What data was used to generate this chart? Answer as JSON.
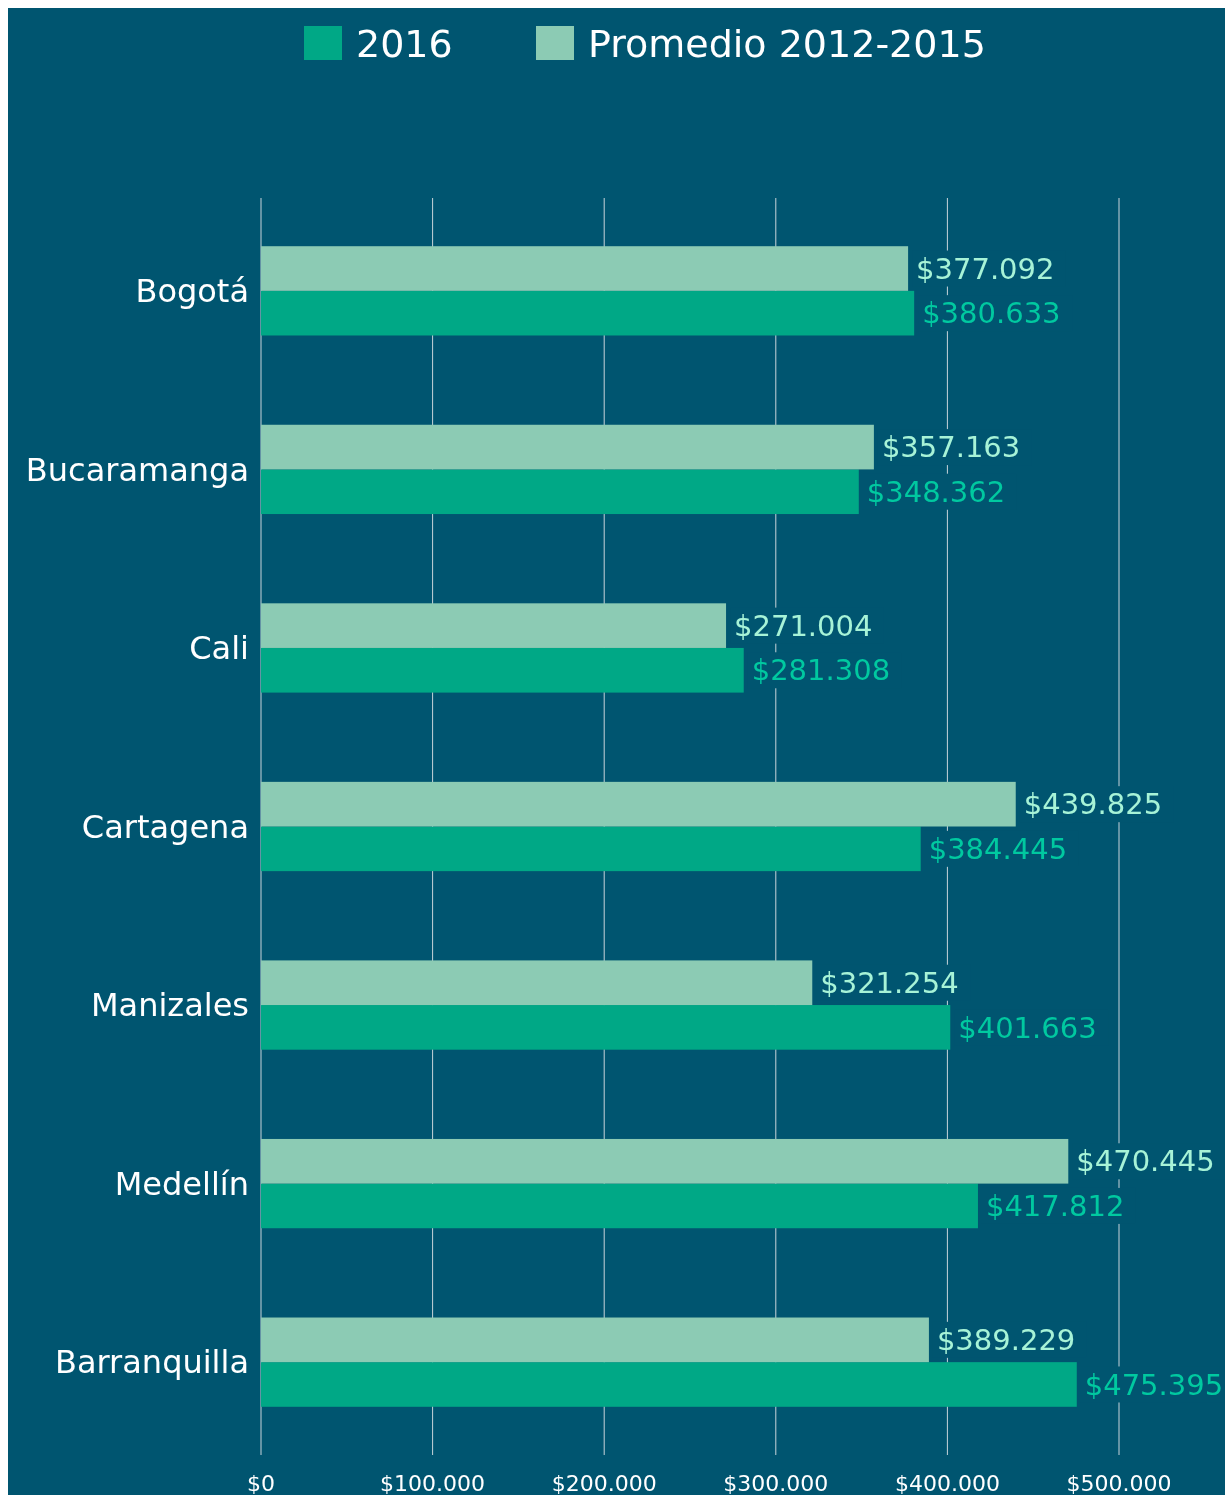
{
  "chart_data": {
    "type": "bar",
    "orientation": "horizontal",
    "categories": [
      "Bogotá",
      "Bucaramanga",
      "Cali",
      "Cartagena",
      "Manizales",
      "Medellín",
      "Barranquilla"
    ],
    "series": [
      {
        "name": "2016",
        "color": "#00a886",
        "values": [
          380633,
          348362,
          281308,
          384445,
          401663,
          417812,
          475395
        ],
        "value_labels": [
          "$380.633",
          "$348.362",
          "$281.308",
          "$384.445",
          "$401.663",
          "$417.812",
          "$475.395"
        ]
      },
      {
        "name": "Promedio 2012-2015",
        "color": "#8ccbb4",
        "values": [
          377092,
          357163,
          271004,
          439825,
          321254,
          470445,
          389229
        ],
        "value_labels": [
          "$377.092",
          "$357.163",
          "$271.004",
          "$439.825",
          "$321.254",
          "$470.445",
          "$389.229"
        ]
      }
    ],
    "xlim": [
      0,
      500000
    ],
    "xticks": [
      {
        "value": 0,
        "label": "$0"
      },
      {
        "value": 100000,
        "label": "$100.000"
      },
      {
        "value": 200000,
        "label": "$200.000"
      },
      {
        "value": 300000,
        "label": "$300.000"
      },
      {
        "value": 400000,
        "label": "$400.000"
      },
      {
        "value": 500000,
        "label": "$500.000"
      }
    ],
    "grid": "x",
    "legend": "top"
  }
}
